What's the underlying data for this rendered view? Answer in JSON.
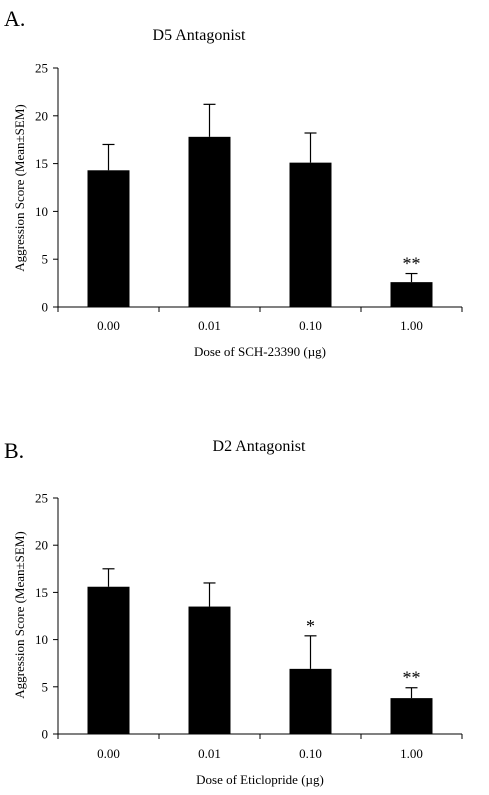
{
  "chart_data": [
    {
      "type": "bar",
      "panel_label": "A.",
      "title": "D5 Antagonist",
      "xlabel": "Dose of SCH-23390 (µg)",
      "ylabel": "Aggression Score (Mean±SEM)",
      "categories": [
        "0.00",
        "0.01",
        "0.10",
        "1.00"
      ],
      "values": [
        14.3,
        17.8,
        15.1,
        2.6
      ],
      "errors": [
        2.7,
        3.4,
        3.1,
        0.9
      ],
      "significance": [
        "",
        "",
        "",
        "**"
      ],
      "ylim": [
        0,
        25
      ],
      "yticks": [
        "0",
        "5",
        "10",
        "15",
        "20",
        "25"
      ],
      "bar_color": "#000000",
      "grid": false,
      "error_bars": "upper"
    },
    {
      "type": "bar",
      "panel_label": "B.",
      "title": "D2 Antagonist",
      "xlabel": "Dose of Eticlopride (µg)",
      "ylabel": "Aggression Score (Mean±SEM)",
      "categories": [
        "0.00",
        "0.01",
        "0.10",
        "1.00"
      ],
      "values": [
        15.6,
        13.5,
        6.9,
        3.8
      ],
      "errors": [
        1.9,
        2.5,
        3.5,
        1.1
      ],
      "significance": [
        "",
        "",
        "*",
        "**"
      ],
      "ylim": [
        0,
        25
      ],
      "yticks": [
        "0",
        "5",
        "10",
        "15",
        "20",
        "25"
      ],
      "bar_color": "#000000",
      "grid": false,
      "error_bars": "upper"
    }
  ]
}
